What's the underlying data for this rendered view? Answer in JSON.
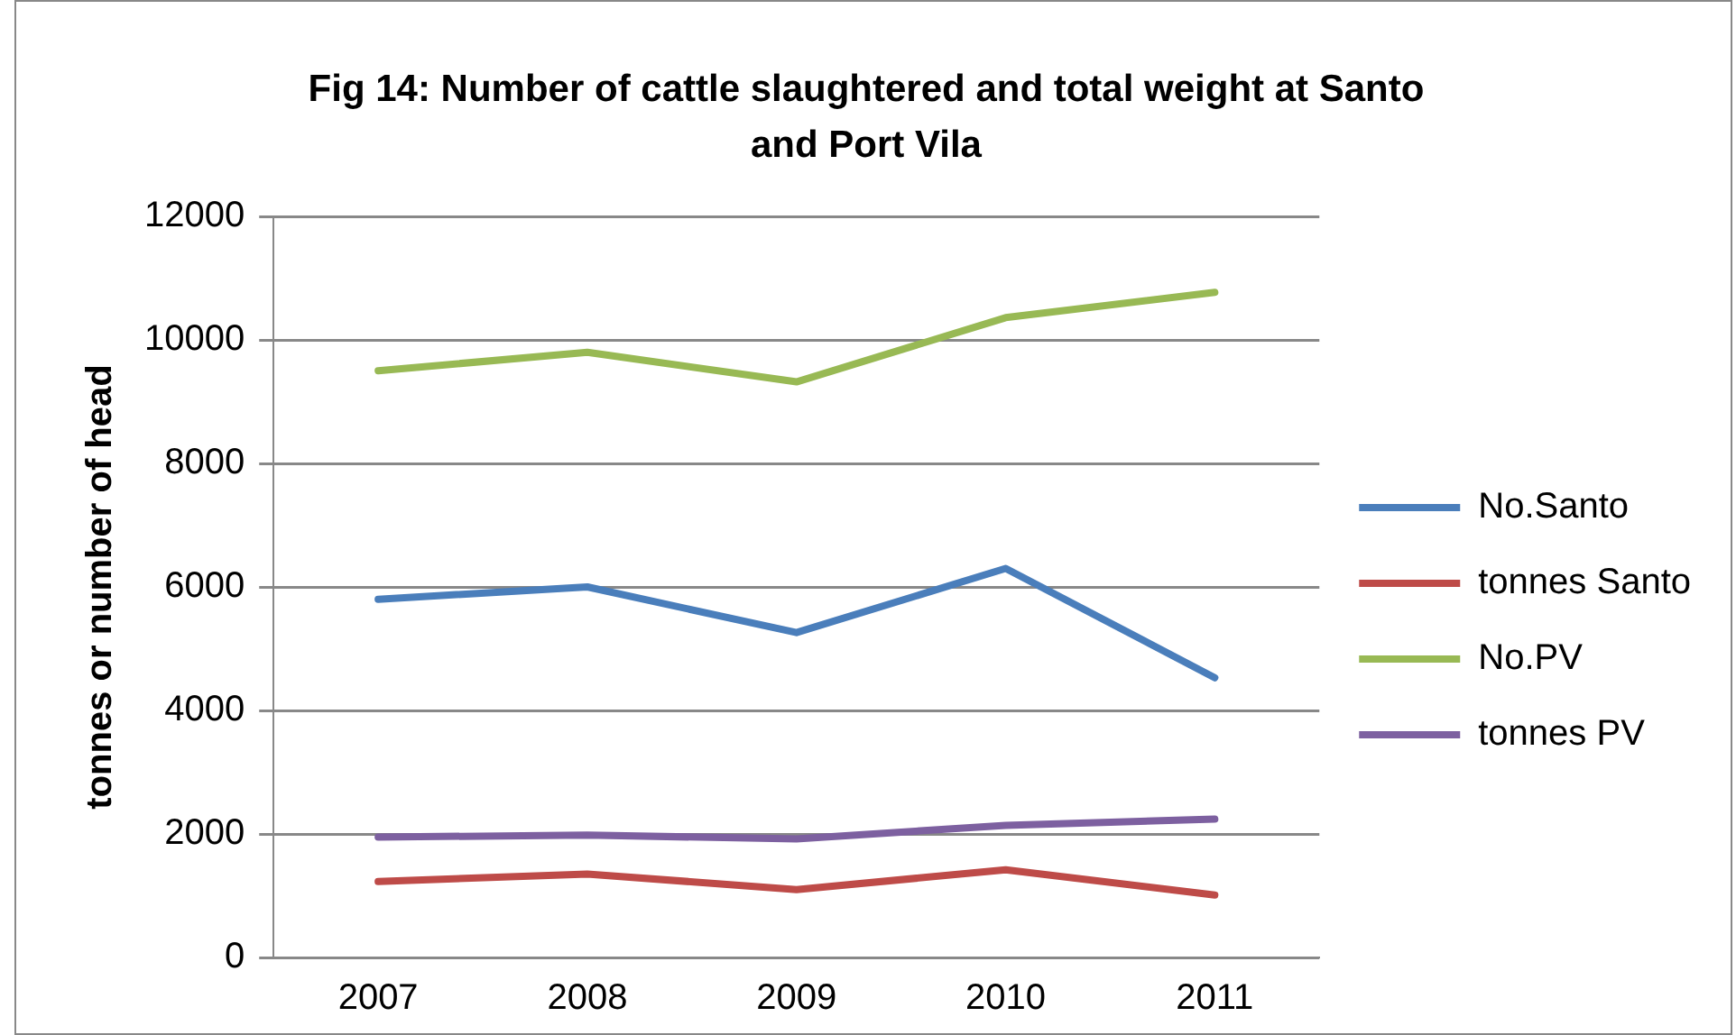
{
  "chart_data": {
    "type": "line",
    "title": "Fig 14: Number of cattle slaughtered and total weight at Santo and Port Vila",
    "ylabel": "tonnes or number of head",
    "categories": [
      "2007",
      "2008",
      "2009",
      "2010",
      "2011"
    ],
    "series": [
      {
        "name": "No.Santo",
        "color": "#4a7ebb",
        "values": [
          5800,
          6000,
          5260,
          6300,
          4530
        ]
      },
      {
        "name": "tonnes Santo",
        "color": "#be4b48",
        "values": [
          1230,
          1350,
          1100,
          1420,
          1010
        ]
      },
      {
        "name": "No.PV",
        "color": "#98b954",
        "values": [
          9500,
          9800,
          9320,
          10360,
          10770
        ]
      },
      {
        "name": "tonnes PV",
        "color": "#7d60a0",
        "values": [
          1950,
          1980,
          1920,
          2140,
          2240
        ]
      }
    ],
    "ylim": [
      0,
      12000
    ],
    "yticks": [
      0,
      2000,
      4000,
      6000,
      8000,
      10000,
      12000
    ],
    "grid": "y",
    "legend": "right",
    "marker": "none",
    "line_style": "solid"
  }
}
